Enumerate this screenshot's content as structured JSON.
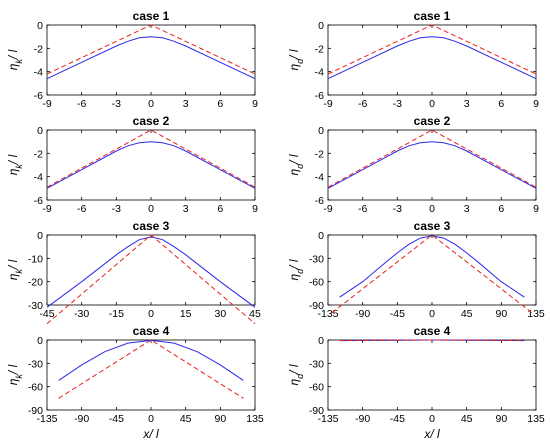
{
  "colors": {
    "solid": "#2a2ae8",
    "dashed": "#e8201c",
    "axis": "#000000",
    "background": "#ffffff"
  },
  "chart_data": [
    {
      "type": "line",
      "title": "case 1",
      "ylabel": "η_k / l",
      "xlabel": "",
      "xlim": [
        -9,
        9
      ],
      "ylim": [
        -6,
        0
      ],
      "xticks": [
        "-9",
        "-6",
        "-3",
        "0",
        "3",
        "6",
        "9"
      ],
      "yticks": [
        "0",
        "-2",
        "-4",
        "-6"
      ],
      "series": [
        {
          "style": "solid",
          "x": [
            -9,
            -6,
            -3,
            -2,
            -1,
            0,
            1,
            2,
            3,
            6,
            9
          ],
          "y": [
            -4.6,
            -3.2,
            -1.8,
            -1.4,
            -1.1,
            -1.0,
            -1.1,
            -1.4,
            -1.8,
            -3.2,
            -4.6
          ]
        },
        {
          "style": "dashed",
          "x": [
            -9,
            0,
            9
          ],
          "y": [
            -4.2,
            0,
            -4.2
          ]
        }
      ]
    },
    {
      "type": "line",
      "title": "case 1",
      "ylabel": "η_d / l",
      "xlabel": "",
      "xlim": [
        -9,
        9
      ],
      "ylim": [
        -6,
        0
      ],
      "xticks": [
        "-9",
        "-6",
        "-3",
        "0",
        "3",
        "6",
        "9"
      ],
      "yticks": [
        "0",
        "-2",
        "-4",
        "-6"
      ],
      "series": [
        {
          "style": "solid",
          "x": [
            -9,
            -6,
            -3,
            -2,
            -1,
            0,
            1,
            2,
            3,
            6,
            9
          ],
          "y": [
            -4.6,
            -3.2,
            -1.8,
            -1.4,
            -1.1,
            -1.0,
            -1.1,
            -1.4,
            -1.8,
            -3.2,
            -4.6
          ]
        },
        {
          "style": "dashed",
          "x": [
            -9,
            0,
            9
          ],
          "y": [
            -4.2,
            0,
            -4.2
          ]
        }
      ]
    },
    {
      "type": "line",
      "title": "case 2",
      "ylabel": "η_k / l",
      "xlabel": "",
      "xlim": [
        -9,
        9
      ],
      "ylim": [
        -6,
        0
      ],
      "xticks": [
        "-9",
        "-6",
        "-3",
        "0",
        "3",
        "6",
        "9"
      ],
      "yticks": [
        "0",
        "-2",
        "-4",
        "-6"
      ],
      "series": [
        {
          "style": "solid",
          "x": [
            -9,
            -6,
            -3,
            -2,
            -1,
            0,
            1,
            2,
            3,
            6,
            9
          ],
          "y": [
            -5.0,
            -3.4,
            -1.8,
            -1.35,
            -1.1,
            -1.0,
            -1.1,
            -1.35,
            -1.8,
            -3.4,
            -5.0
          ]
        },
        {
          "style": "dashed",
          "x": [
            -9,
            0,
            9
          ],
          "y": [
            -4.9,
            0,
            -4.9
          ]
        }
      ]
    },
    {
      "type": "line",
      "title": "case 2",
      "ylabel": "η_d / l",
      "xlabel": "",
      "xlim": [
        -9,
        9
      ],
      "ylim": [
        -6,
        0
      ],
      "xticks": [
        "-9",
        "-6",
        "-3",
        "0",
        "3",
        "6",
        "9"
      ],
      "yticks": [
        "0",
        "-2",
        "-4",
        "-6"
      ],
      "series": [
        {
          "style": "solid",
          "x": [
            -9,
            -6,
            -3,
            -2,
            -1,
            0,
            1,
            2,
            3,
            6,
            9
          ],
          "y": [
            -5.0,
            -3.4,
            -1.8,
            -1.35,
            -1.1,
            -1.0,
            -1.1,
            -1.35,
            -1.8,
            -3.4,
            -5.0
          ]
        },
        {
          "style": "dashed",
          "x": [
            -9,
            0,
            9
          ],
          "y": [
            -4.9,
            0,
            -4.9
          ]
        }
      ]
    },
    {
      "type": "line",
      "title": "case 3",
      "ylabel": "η_k / l",
      "xlabel": "",
      "xlim": [
        -45,
        45
      ],
      "ylim": [
        -30,
        0
      ],
      "xticks": [
        "-45",
        "-30",
        "-15",
        "0",
        "15",
        "30",
        "45"
      ],
      "yticks": [
        "0",
        "-10",
        "-20",
        "-30"
      ],
      "series": [
        {
          "style": "solid",
          "x": [
            -45,
            -30,
            -15,
            -10,
            -5,
            0,
            5,
            10,
            15,
            30,
            45
          ],
          "y": [
            -31,
            -20,
            -8.5,
            -5,
            -2,
            -0.8,
            -2,
            -5,
            -8.5,
            -20,
            -31
          ]
        },
        {
          "style": "dashed",
          "x": [
            -45,
            0,
            45
          ],
          "y": [
            -38,
            0,
            -38
          ]
        }
      ]
    },
    {
      "type": "line",
      "title": "case 3",
      "ylabel": "η_d / l",
      "xlabel": "",
      "xlim": [
        -135,
        135
      ],
      "ylim": [
        -90,
        0
      ],
      "xticks": [
        "-135",
        "-90",
        "-45",
        "0",
        "45",
        "90",
        "135"
      ],
      "yticks": [
        "0",
        "-30",
        "-60",
        "-90"
      ],
      "series": [
        {
          "style": "solid",
          "x": [
            -120,
            -90,
            -60,
            -45,
            -30,
            -15,
            0,
            15,
            30,
            45,
            60,
            90,
            120
          ],
          "y": [
            -80,
            -60,
            -35,
            -23,
            -12,
            -4,
            -1,
            -4,
            -12,
            -23,
            -35,
            -60,
            -80
          ]
        },
        {
          "style": "dashed",
          "x": [
            -130,
            0,
            130
          ],
          "y": [
            -100,
            0,
            -100
          ]
        }
      ]
    },
    {
      "type": "line",
      "title": "case 4",
      "ylabel": "η_k / l",
      "xlabel": "x/ l",
      "xlim": [
        -135,
        135
      ],
      "ylim": [
        -90,
        0
      ],
      "xticks": [
        "-135",
        "-90",
        "-45",
        "0",
        "45",
        "90",
        "135"
      ],
      "yticks": [
        "0",
        "-30",
        "-60",
        "-90"
      ],
      "series": [
        {
          "style": "solid",
          "x": [
            -120,
            -90,
            -60,
            -30,
            0,
            30,
            60,
            90,
            120
          ],
          "y": [
            -52,
            -32,
            -15,
            -4,
            -0.5,
            -4,
            -15,
            -32,
            -52
          ]
        },
        {
          "style": "dashed",
          "x": [
            -120,
            0,
            120
          ],
          "y": [
            -75,
            0,
            -75
          ]
        }
      ]
    },
    {
      "type": "line",
      "title": "case 4",
      "ylabel": "η_d / l",
      "xlabel": "x/ l",
      "xlim": [
        -135,
        135
      ],
      "ylim": [
        -90,
        0
      ],
      "xticks": [
        "-135",
        "-90",
        "-45",
        "0",
        "45",
        "90",
        "135"
      ],
      "yticks": [
        "0",
        "-30",
        "-60",
        "-90"
      ],
      "series": [
        {
          "style": "solid",
          "x": [
            -120,
            0,
            120
          ],
          "y": [
            -0.8,
            0,
            -0.8
          ]
        },
        {
          "style": "dashed",
          "x": [
            -120,
            0,
            120
          ],
          "y": [
            -0.6,
            0,
            -0.6
          ]
        }
      ]
    }
  ]
}
